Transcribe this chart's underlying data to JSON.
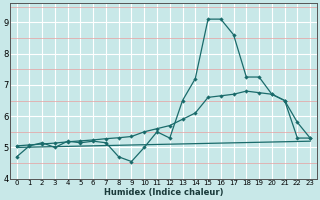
{
  "xlabel": "Humidex (Indice chaleur)",
  "xlim": [
    -0.5,
    23.5
  ],
  "ylim": [
    4.0,
    9.6
  ],
  "xticks": [
    0,
    1,
    2,
    3,
    4,
    5,
    6,
    7,
    8,
    9,
    10,
    11,
    12,
    13,
    14,
    15,
    16,
    17,
    18,
    19,
    20,
    21,
    22,
    23
  ],
  "yticks": [
    4,
    5,
    6,
    7,
    8,
    9
  ],
  "bg_color": "#c8e8e8",
  "line_color": "#1a6b6b",
  "white_grid": "#ffffff",
  "red_grid": "#e8a0a0",
  "line1_x": [
    0,
    1,
    2,
    3,
    4,
    5,
    6,
    7,
    8,
    9,
    10,
    11,
    12,
    13,
    14,
    15,
    16,
    17,
    18,
    19,
    20,
    21,
    22,
    23
  ],
  "line1_y": [
    4.7,
    5.05,
    5.15,
    5.0,
    5.2,
    5.15,
    5.2,
    5.15,
    4.7,
    4.55,
    5.0,
    5.5,
    5.3,
    6.5,
    7.2,
    9.1,
    9.1,
    8.6,
    7.25,
    7.25,
    6.7,
    6.5,
    5.3,
    5.3
  ],
  "line2_x": [
    0,
    23
  ],
  "line2_y": [
    5.0,
    5.2
  ],
  "line3_x": [
    0,
    1,
    2,
    3,
    4,
    5,
    6,
    7,
    8,
    9,
    10,
    11,
    12,
    13,
    14,
    15,
    16,
    17,
    18,
    19,
    20,
    21,
    22,
    23
  ],
  "line3_y": [
    5.05,
    5.08,
    5.11,
    5.14,
    5.18,
    5.21,
    5.24,
    5.28,
    5.31,
    5.35,
    5.5,
    5.6,
    5.7,
    5.9,
    6.1,
    6.6,
    6.65,
    6.7,
    6.8,
    6.75,
    6.7,
    6.5,
    5.8,
    5.3
  ]
}
